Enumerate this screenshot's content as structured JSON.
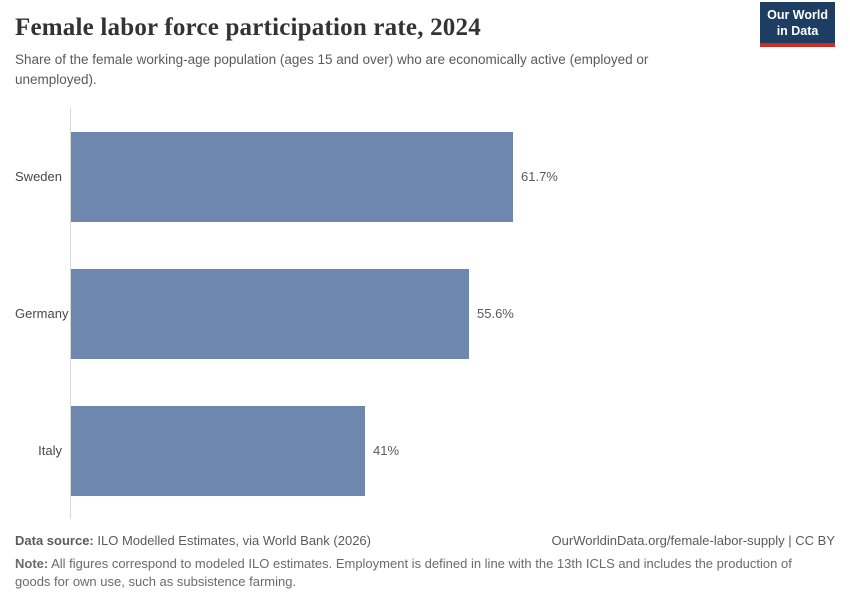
{
  "header": {
    "title": "Female labor force participation rate, 2024",
    "subtitle": "Share of the female working-age population (ages 15 and over) who are economically active (employed or unemployed).",
    "logo": {
      "line1": "Our World",
      "line2": "in Data"
    }
  },
  "chart_data": {
    "type": "bar",
    "orientation": "horizontal",
    "title": "Female labor force participation rate, 2024",
    "categories": [
      "Sweden",
      "Germany",
      "Italy"
    ],
    "values": [
      61.7,
      55.6,
      41
    ],
    "value_labels": [
      "61.7%",
      "55.6%",
      "41%"
    ],
    "unit": "%",
    "xlabel": "",
    "ylabel": "",
    "xlim": [
      0,
      61.7
    ],
    "grid": false,
    "legend": false,
    "bar_color": "#6d87ae",
    "axis_line_color": "#d9d9d9"
  },
  "footer": {
    "source_label": "Data source:",
    "source_text": "ILO Modelled Estimates, via World Bank (2026)",
    "link": "OurWorldinData.org/female-labor-supply | CC BY",
    "note_label": "Note:",
    "note_text": "All figures correspond to modeled ILO estimates. Employment is defined in line with the 13th ICLS and includes the production of goods for own use, such as subsistence farming."
  },
  "colors": {
    "bar": "#6d87ae",
    "logo_bg": "#1d3d63",
    "logo_accent": "#cf2d23",
    "title_text": "#333333",
    "subtitle_text": "#5a5a5a",
    "footer_text": "#5b5b5b"
  }
}
